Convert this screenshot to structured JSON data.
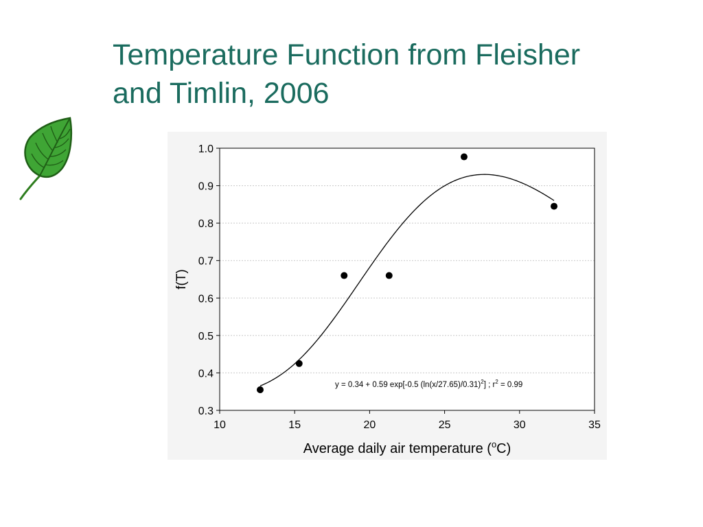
{
  "slide": {
    "title_line1": "Temperature Function from Fleisher",
    "title_line2": "and Timlin, 2006",
    "title_color": "#1a6b5e",
    "decoration_icon": "leaf-icon"
  },
  "chart_data": {
    "type": "scatter",
    "xlabel": "Average daily air temperature (°C)",
    "xlabel_parts": {
      "before": "Average daily air temperature (",
      "sup": "o",
      "after": "C)"
    },
    "ylabel": "f(T)",
    "xlim": [
      10,
      35
    ],
    "ylim": [
      0.3,
      1.0
    ],
    "x_ticks": [
      10,
      15,
      20,
      25,
      30,
      35
    ],
    "y_ticks": [
      0.3,
      0.4,
      0.5,
      0.6,
      0.7,
      0.8,
      0.9,
      1.0
    ],
    "x_tick_labels": [
      "10",
      "15",
      "20",
      "25",
      "30",
      "35"
    ],
    "y_tick_labels": [
      "0.3",
      "0.4",
      "0.5",
      "0.6",
      "0.7",
      "0.8",
      "0.9",
      "1.0"
    ],
    "grid": "horizontal dotted",
    "points": [
      {
        "x": 12.7,
        "y": 0.355
      },
      {
        "x": 15.3,
        "y": 0.425
      },
      {
        "x": 18.3,
        "y": 0.66
      },
      {
        "x": 21.3,
        "y": 0.66
      },
      {
        "x": 26.3,
        "y": 0.977
      },
      {
        "x": 32.3,
        "y": 0.845
      }
    ],
    "fit": {
      "a": 0.34,
      "b": 0.59,
      "x0": 27.65,
      "w": 0.31,
      "x_range": [
        12.7,
        32.3
      ],
      "equation_parts": {
        "p1": "y = 0.34 + 0.59 exp[-0.5 (ln(x/27.65)/0.31)",
        "sup1": "2",
        "p2": "] ; r",
        "sup2": "2",
        "p3": " = 0.99"
      }
    },
    "colors": {
      "points": "#000000",
      "curve": "#000000",
      "grid": "#c8c8c8",
      "panel": "#f4f4f4"
    }
  }
}
